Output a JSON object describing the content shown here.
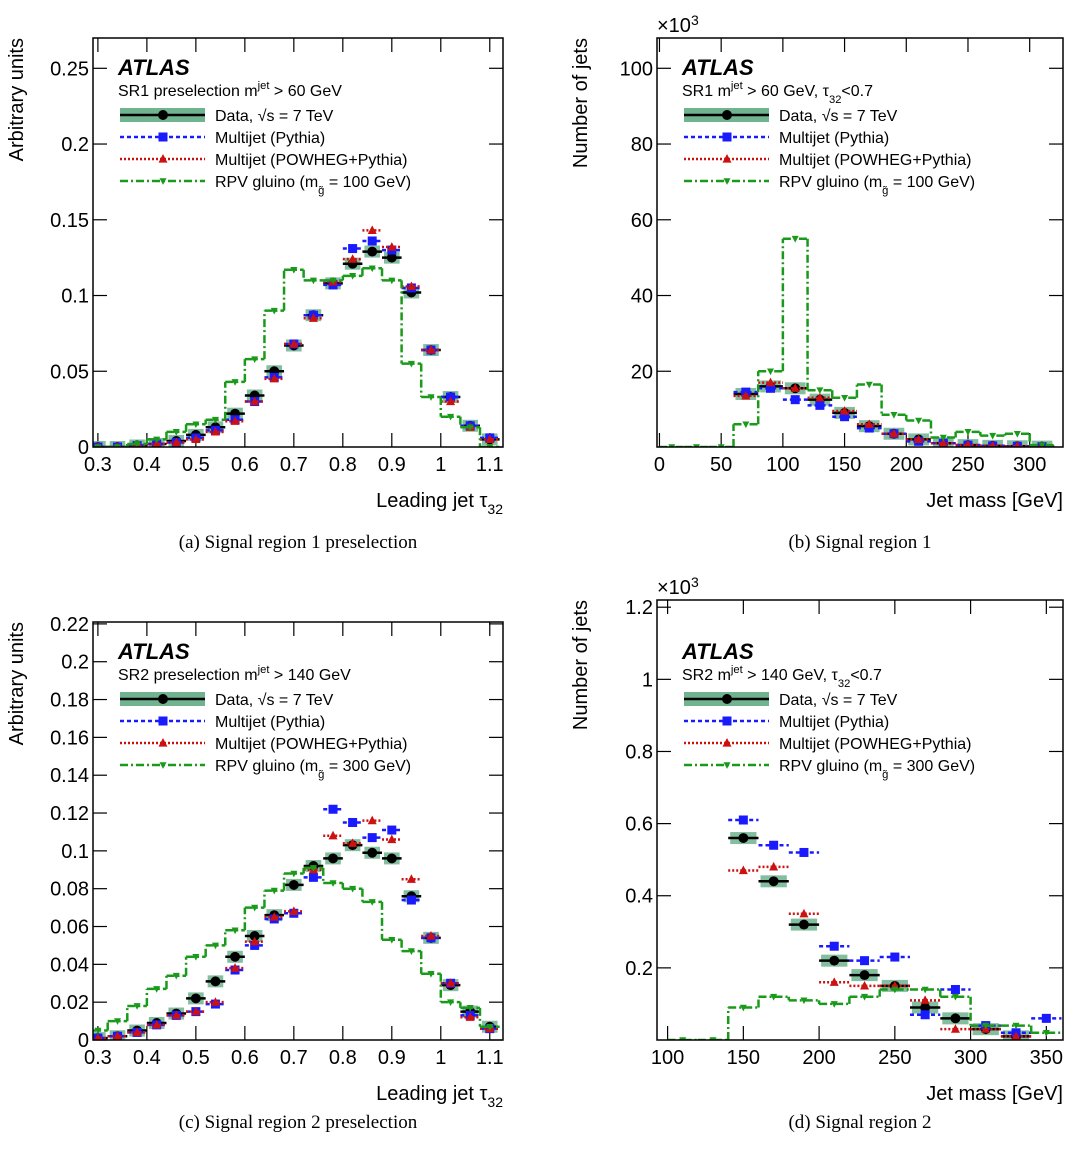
{
  "chart_data": [
    {
      "type": "step",
      "atlas_label": "ATLAS",
      "annotation": [
        "SR1 preselection m",
        "jet",
        " > 60 GeV"
      ],
      "xlabel": [
        "Leading jet τ",
        "32"
      ],
      "ylabel": "Arbitrary units",
      "caption": "(a) Signal region 1 preselection",
      "xlim": [
        0.29,
        1.127
      ],
      "ylim": [
        0,
        0.27
      ],
      "xticks": [
        0.3,
        0.4,
        0.5,
        0.6,
        0.7,
        0.8,
        0.9,
        1,
        1.1
      ],
      "yticks": [
        0,
        0.05,
        0.1,
        0.15,
        0.2,
        0.25
      ],
      "x": [
        0.3,
        0.34,
        0.38,
        0.42,
        0.46,
        0.5,
        0.54,
        0.58,
        0.62,
        0.66,
        0.7,
        0.74,
        0.78,
        0.82,
        0.86,
        0.9,
        0.94,
        0.98,
        1.02,
        1.06,
        1.1
      ],
      "series": [
        {
          "name": "Data, √s = 7 TeV",
          "color": "#000000",
          "values": [
            0,
            0,
            0.001,
            0.002,
            0.004,
            0.008,
            0.013,
            0.022,
            0.034,
            0.05,
            0.067,
            0.087,
            0.108,
            0.121,
            0.129,
            0.125,
            0.102,
            0.064,
            0.033,
            0.014,
            0.005
          ]
        },
        {
          "name": "Multijet (Pythia)",
          "color": "#1a1aff",
          "values": [
            0,
            0,
            0.001,
            0.002,
            0.003,
            0.006,
            0.011,
            0.018,
            0.03,
            0.046,
            0.068,
            0.087,
            0.107,
            0.131,
            0.136,
            0.13,
            0.105,
            0.064,
            0.033,
            0.014,
            0.006
          ]
        },
        {
          "name": "Multijet (POWHEG+Pythia)",
          "color": "#cc1111",
          "values": [
            0,
            0,
            0.001,
            0.002,
            0.003,
            0.005,
            0.01,
            0.017,
            0.03,
            0.045,
            0.068,
            0.085,
            0.109,
            0.124,
            0.143,
            0.132,
            0.106,
            0.064,
            0.03,
            0.013,
            0.005
          ]
        },
        {
          "name": [
            "RPV gluino (m",
            "g̃",
            " = 100 GeV)"
          ],
          "color": "#1a9a1a",
          "values": [
            0,
            0,
            0.002,
            0.005,
            0.01,
            0.015,
            0.018,
            0.043,
            0.058,
            0.09,
            0.117,
            0.11,
            0.11,
            0.113,
            0.118,
            0.11,
            0.055,
            0.033,
            0.02,
            0.013,
            0
          ]
        }
      ]
    },
    {
      "type": "step",
      "atlas_label": "ATLAS",
      "annotation": [
        "SR1 m",
        "jet",
        " > 60 GeV, τ",
        "32",
        "<0.7"
      ],
      "xlabel": "Jet mass [GeV]",
      "ylabel": "Number of jets",
      "yscale_label": [
        "×10",
        "3"
      ],
      "caption": "(b) Signal region 1",
      "xlim": [
        -2,
        327
      ],
      "ylim": [
        0,
        108
      ],
      "xticks": [
        0,
        50,
        100,
        150,
        200,
        250,
        300
      ],
      "yticks": [
        20,
        40,
        60,
        80,
        100
      ],
      "x": [
        10,
        30,
        50,
        70,
        90,
        110,
        130,
        150,
        170,
        190,
        210,
        230,
        250,
        270,
        290,
        310
      ],
      "series": [
        {
          "name": "Data, √s = 7 TeV",
          "color": "#000000",
          "values": [
            null,
            null,
            null,
            14,
            16,
            15.5,
            12.5,
            9,
            5.5,
            3.5,
            2,
            1,
            0.5,
            0.3,
            0.2,
            0.1
          ]
        },
        {
          "name": "Multijet (Pythia)",
          "color": "#1a1aff",
          "values": [
            null,
            null,
            null,
            14.5,
            15.5,
            12.5,
            11,
            8,
            5,
            3.5,
            1.5,
            1,
            0.5,
            0.3,
            0.2,
            0.1
          ]
        },
        {
          "name": "Multijet (POWHEG+Pythia)",
          "color": "#cc1111",
          "values": [
            null,
            null,
            null,
            13.5,
            17,
            15.5,
            13,
            9.5,
            6,
            3.5,
            2,
            1,
            0.5,
            0.3,
            0.2,
            0.1
          ]
        },
        {
          "name": [
            "RPV gluino (m",
            "g̃",
            " = 100 GeV)"
          ],
          "color": "#1a9a1a",
          "values": [
            0,
            0,
            0,
            6,
            20,
            55,
            15,
            13,
            16.5,
            8.5,
            7,
            2.5,
            4,
            3,
            3.5,
            0.5
          ]
        }
      ]
    },
    {
      "type": "step",
      "atlas_label": "ATLAS",
      "annotation": [
        "SR2 preselection m",
        "jet",
        " > 140 GeV"
      ],
      "xlabel": [
        "Leading jet τ",
        "32"
      ],
      "ylabel": "Arbitrary units",
      "caption": "(c) Signal region 2 preselection",
      "xlim": [
        0.29,
        1.127
      ],
      "ylim": [
        0,
        0.221
      ],
      "xticks": [
        0.3,
        0.4,
        0.5,
        0.6,
        0.7,
        0.8,
        0.9,
        1,
        1.1
      ],
      "yticks": [
        0,
        0.02,
        0.04,
        0.06,
        0.08,
        0.1,
        0.12,
        0.14,
        0.16,
        0.18,
        0.2,
        0.22
      ],
      "x": [
        0.3,
        0.34,
        0.38,
        0.42,
        0.46,
        0.5,
        0.54,
        0.58,
        0.62,
        0.66,
        0.7,
        0.74,
        0.78,
        0.82,
        0.86,
        0.9,
        0.94,
        0.98,
        1.02,
        1.06,
        1.1
      ],
      "series": [
        {
          "name": "Data, √s = 7 TeV",
          "color": "#000000",
          "values": [
            0.001,
            0.002,
            0.005,
            0.009,
            0.014,
            0.022,
            0.031,
            0.044,
            0.055,
            0.066,
            0.082,
            0.092,
            0.096,
            0.103,
            0.099,
            0.096,
            0.076,
            0.054,
            0.029,
            0.015,
            0.007
          ]
        },
        {
          "name": "Multijet (Pythia)",
          "color": "#1a1aff",
          "values": [
            0.001,
            0.002,
            0.004,
            0.008,
            0.013,
            0.015,
            0.019,
            0.037,
            0.05,
            0.064,
            0.067,
            0.086,
            0.122,
            0.115,
            0.107,
            0.111,
            0.074,
            0.054,
            0.03,
            0.013,
            0.006
          ]
        },
        {
          "name": "Multijet (POWHEG+Pythia)",
          "color": "#cc1111",
          "values": [
            0.001,
            0.002,
            0.004,
            0.008,
            0.013,
            0.015,
            0.02,
            0.038,
            0.052,
            0.065,
            0.068,
            0.09,
            0.108,
            0.104,
            0.116,
            0.106,
            0.085,
            0.055,
            0.03,
            0.012,
            0.006
          ]
        },
        {
          "name": [
            "RPV gluino (m",
            "g̃",
            " = 300 GeV)"
          ],
          "color": "#1a9a1a",
          "values": [
            0.005,
            0.01,
            0.018,
            0.027,
            0.034,
            0.044,
            0.05,
            0.058,
            0.07,
            0.079,
            0.088,
            0.091,
            0.083,
            0.08,
            0.073,
            0.053,
            0.047,
            0.035,
            0.02,
            0.017,
            0.007
          ]
        }
      ]
    },
    {
      "type": "step",
      "atlas_label": "ATLAS",
      "annotation": [
        "SR2 m",
        "jet",
        " > 140 GeV, τ",
        "32",
        "<0.7"
      ],
      "xlabel": "Jet mass [GeV]",
      "ylabel": "Number of jets",
      "yscale_label": [
        "×10",
        "3"
      ],
      "caption": "(d) Signal region 2",
      "xlim": [
        93,
        361
      ],
      "ylim": [
        0,
        1.22
      ],
      "xticks": [
        100,
        150,
        200,
        250,
        300,
        350
      ],
      "yticks": [
        0.2,
        0.4,
        0.6,
        0.8,
        1,
        1.2
      ],
      "x": [
        110,
        130,
        150,
        170,
        190,
        210,
        230,
        250,
        270,
        290,
        310,
        330,
        350
      ],
      "series": [
        {
          "name": "Data, √s = 7 TeV",
          "color": "#000000",
          "values": [
            null,
            null,
            0.56,
            0.44,
            0.32,
            0.22,
            0.18,
            0.15,
            0.09,
            0.06,
            0.03,
            0.01,
            null
          ]
        },
        {
          "name": "Multijet (Pythia)",
          "color": "#1a1aff",
          "values": [
            null,
            null,
            0.61,
            0.54,
            0.52,
            0.26,
            0.22,
            0.23,
            0.07,
            0.14,
            0.04,
            0.02,
            0.06
          ]
        },
        {
          "name": "Multijet (POWHEG+Pythia)",
          "color": "#cc1111",
          "values": [
            null,
            null,
            0.47,
            0.48,
            0.35,
            0.16,
            0.15,
            0.15,
            0.11,
            0.03,
            0.03,
            0.01,
            null
          ]
        },
        {
          "name": [
            "RPV gluino (m",
            "g̃",
            " = 300 GeV)"
          ],
          "color": "#1a9a1a",
          "values": [
            0,
            0,
            0.09,
            0.12,
            0.11,
            0.1,
            0.12,
            0.14,
            0.14,
            0.12,
            0.04,
            0.04,
            0.02
          ]
        }
      ]
    }
  ]
}
